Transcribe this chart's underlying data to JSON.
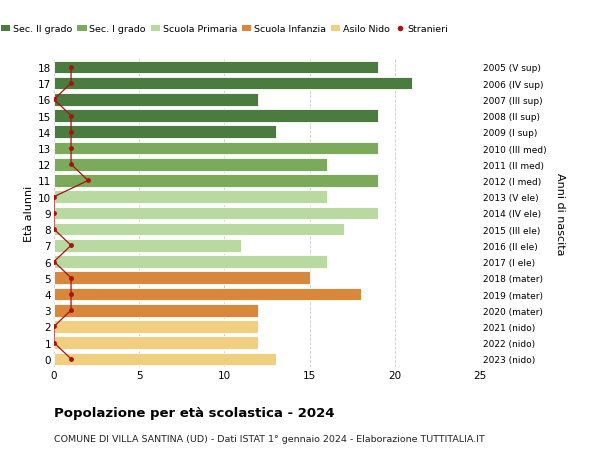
{
  "ages": [
    18,
    17,
    16,
    15,
    14,
    13,
    12,
    11,
    10,
    9,
    8,
    7,
    6,
    5,
    4,
    3,
    2,
    1,
    0
  ],
  "right_labels": [
    "2005 (V sup)",
    "2006 (IV sup)",
    "2007 (III sup)",
    "2008 (II sup)",
    "2009 (I sup)",
    "2010 (III med)",
    "2011 (II med)",
    "2012 (I med)",
    "2013 (V ele)",
    "2014 (IV ele)",
    "2015 (III ele)",
    "2016 (II ele)",
    "2017 (I ele)",
    "2018 (mater)",
    "2019 (mater)",
    "2020 (mater)",
    "2021 (nido)",
    "2022 (nido)",
    "2023 (nido)"
  ],
  "bar_values": [
    19,
    21,
    12,
    19,
    13,
    19,
    16,
    19,
    16,
    19,
    17,
    11,
    16,
    15,
    18,
    12,
    12,
    12,
    13
  ],
  "stranieri": [
    1,
    1,
    0,
    1,
    1,
    1,
    1,
    2,
    0,
    0,
    0,
    1,
    0,
    1,
    1,
    1,
    0,
    0,
    1
  ],
  "bar_colors": [
    "#4a7c3f",
    "#4a7c3f",
    "#4a7c3f",
    "#4a7c3f",
    "#4a7c3f",
    "#7aaa5a",
    "#7aaa5a",
    "#7aaa5a",
    "#b8d9a0",
    "#b8d9a0",
    "#b8d9a0",
    "#b8d9a0",
    "#b8d9a0",
    "#d9873a",
    "#d9873a",
    "#d9873a",
    "#f0d080",
    "#f0d080",
    "#f0d080"
  ],
  "legend_labels": [
    "Sec. II grado",
    "Sec. I grado",
    "Scuola Primaria",
    "Scuola Infanzia",
    "Asilo Nido",
    "Stranieri"
  ],
  "legend_colors": [
    "#4a7c3f",
    "#7aaa5a",
    "#b8d9a0",
    "#d9873a",
    "#f0d080",
    "#cc2222"
  ],
  "ylabel": "Età alunni",
  "ylabel2": "Anni di nascita",
  "title": "Popolazione per età scolastica - 2024",
  "subtitle": "COMUNE DI VILLA SANTINA (UD) - Dati ISTAT 1° gennaio 2024 - Elaborazione TUTTITALIA.IT",
  "xlim": [
    0,
    25
  ],
  "xticks": [
    0,
    5,
    10,
    15,
    20,
    25
  ],
  "background_color": "#ffffff",
  "grid_color": "#cccccc",
  "stranieri_color": "#aa1111",
  "stranieri_line_color": "#aa1111"
}
